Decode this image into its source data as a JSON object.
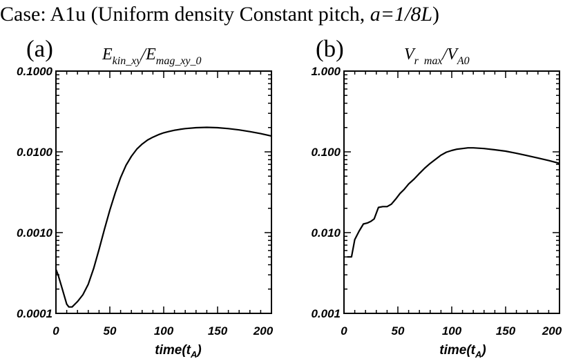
{
  "figure": {
    "title_prefix": "Case: A1u (Uniform density Constant pitch, ",
    "title_italic": "a=1/8L",
    "title_suffix": ")"
  },
  "chart_data": [
    {
      "type": "line",
      "panel_label": "(a)",
      "title": {
        "v1": "E",
        "s1": "kin_xy",
        "slash": "/",
        "v2": "E",
        "s2": "mag_xy_0"
      },
      "xlabel": {
        "main": "time(t",
        "sub": "A",
        "close": ")"
      },
      "x_tick_labels": [
        "0",
        "50",
        "100",
        "150",
        "200"
      ],
      "y_tick_labels": [
        "0.1000",
        "0.0100",
        "0.0010",
        "0.0001"
      ],
      "xlim": [
        0,
        200
      ],
      "ylim": [
        0.0001,
        0.1
      ],
      "ylog": true,
      "series": [
        {
          "x": [
            0,
            2,
            5,
            8,
            10,
            12,
            15,
            20,
            25,
            30,
            35,
            40,
            45,
            50,
            55,
            60,
            65,
            70,
            75,
            80,
            85,
            90,
            95,
            100,
            105,
            110,
            115,
            120,
            130,
            140,
            150,
            160,
            170,
            180,
            190,
            200
          ],
          "y": [
            0.00035,
            0.0003,
            0.00022,
            0.00016,
            0.00013,
            0.00012,
            0.00012,
            0.00014,
            0.00017,
            0.00023,
            0.00036,
            0.00062,
            0.0011,
            0.0019,
            0.0031,
            0.0048,
            0.0068,
            0.0088,
            0.0108,
            0.0125,
            0.014,
            0.0152,
            0.0163,
            0.0172,
            0.0179,
            0.0185,
            0.019,
            0.0194,
            0.0199,
            0.0201,
            0.0199,
            0.0194,
            0.0187,
            0.0178,
            0.0168,
            0.0157
          ]
        }
      ]
    },
    {
      "type": "line",
      "panel_label": "(b)",
      "title": {
        "v1": "V",
        "s1": "r  max",
        "slash": "/",
        "v2": "V",
        "s2": "A0"
      },
      "xlabel": {
        "main": "time(t",
        "sub": "A",
        "close": ")"
      },
      "x_tick_labels": [
        "0",
        "50",
        "100",
        "150",
        "200"
      ],
      "y_tick_labels": [
        "1.000",
        "0.100",
        "0.010",
        "0.001"
      ],
      "xlim": [
        0,
        200
      ],
      "ylim": [
        0.001,
        1.0
      ],
      "ylog": true,
      "series": [
        {
          "x": [
            3,
            7,
            10,
            14,
            18,
            22,
            25,
            28,
            32,
            36,
            40,
            44,
            48,
            52,
            56,
            60,
            65,
            70,
            75,
            80,
            85,
            90,
            95,
            100,
            105,
            110,
            115,
            120,
            130,
            140,
            150,
            160,
            170,
            180,
            190,
            200
          ],
          "y": [
            0.005,
            0.005,
            0.0082,
            0.0104,
            0.0128,
            0.0132,
            0.0138,
            0.0148,
            0.0205,
            0.021,
            0.021,
            0.0225,
            0.026,
            0.0305,
            0.0345,
            0.04,
            0.046,
            0.054,
            0.063,
            0.072,
            0.081,
            0.091,
            0.099,
            0.104,
            0.108,
            0.11,
            0.112,
            0.112,
            0.11,
            0.106,
            0.102,
            0.096,
            0.09,
            0.084,
            0.078,
            0.072
          ]
        }
      ]
    }
  ]
}
